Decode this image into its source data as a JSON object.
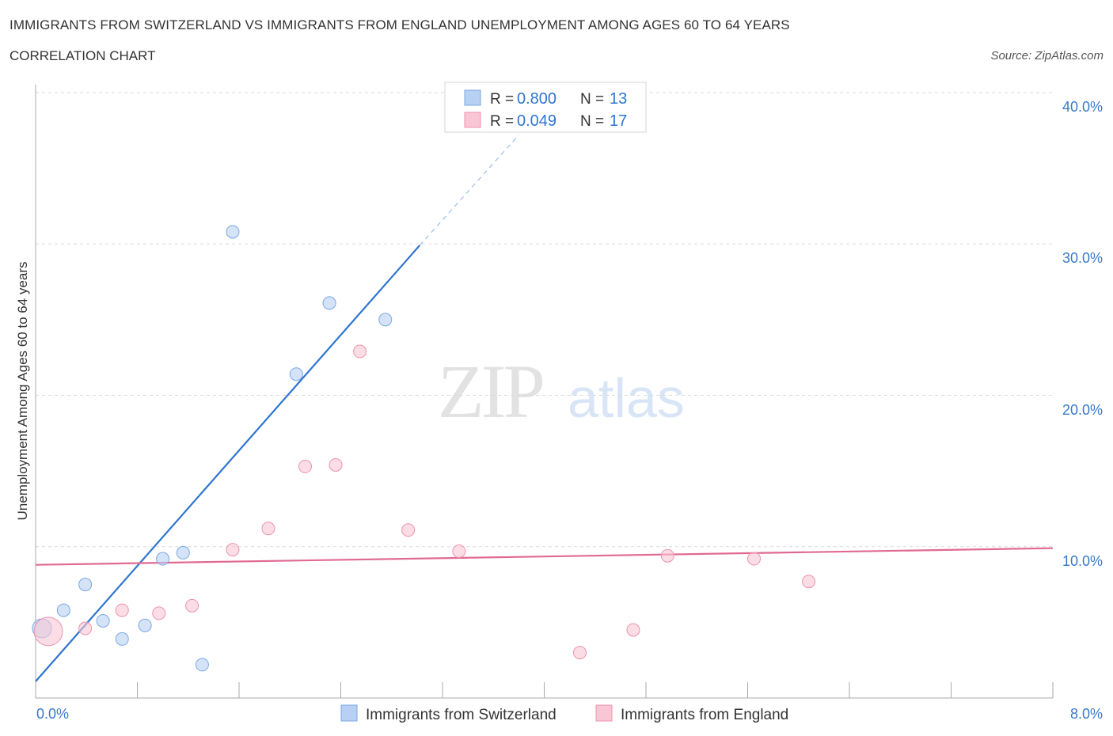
{
  "title": "IMMIGRANTS FROM SWITZERLAND VS IMMIGRANTS FROM ENGLAND UNEMPLOYMENT AMONG AGES 60 TO 64 YEARS",
  "subtitle": "CORRELATION CHART",
  "source": "Source: ZipAtlas.com",
  "watermark": {
    "zip": "ZIP",
    "atlas": "atlas"
  },
  "colors": {
    "blue_fill": "#b9d0f5",
    "blue_stroke": "#7aa7e0",
    "blue_line": "#2f75d0",
    "pink_fill": "#f8c6d4",
    "pink_stroke": "#ec93ae",
    "pink_line": "#e06a92",
    "axis_label": "#3a78c9",
    "grid": "#d9d9d9"
  },
  "stats_legend": [
    {
      "r_label": "R = ",
      "r_value": "0.800",
      "n_label": "N = ",
      "n_value": "13"
    },
    {
      "r_label": "R = ",
      "r_value": "0.049",
      "n_label": "N = ",
      "n_value": "17"
    }
  ],
  "chart_data": {
    "type": "scatter",
    "title": "IMMIGRANTS FROM SWITZERLAND VS IMMIGRANTS FROM ENGLAND UNEMPLOYMENT AMONG AGES 60 TO 64 YEARS",
    "subtitle": "CORRELATION CHART",
    "xlabel": "",
    "ylabel": "Unemployment Among Ages 60 to 64 years",
    "xlim": [
      0,
      8
    ],
    "ylim": [
      0,
      40
    ],
    "x_tick_labels": [
      "0.0%",
      "8.0%"
    ],
    "y_tick_labels": [
      "10.0%",
      "20.0%",
      "30.0%",
      "40.0%"
    ],
    "y_ticks": [
      10,
      20,
      30,
      40
    ],
    "x_minor_ticks": [
      0.8,
      1.6,
      2.4,
      3.2,
      4.0,
      4.8,
      5.6,
      6.4,
      7.2,
      8.0
    ],
    "grid": true,
    "series": [
      {
        "name": "Immigrants from Switzerland",
        "color": "blue",
        "R": 0.8,
        "N": 13,
        "points": [
          {
            "x": 0.05,
            "y": 4.6,
            "size": "large"
          },
          {
            "x": 0.22,
            "y": 5.8
          },
          {
            "x": 0.39,
            "y": 7.5
          },
          {
            "x": 0.53,
            "y": 5.1
          },
          {
            "x": 0.68,
            "y": 3.9
          },
          {
            "x": 0.86,
            "y": 4.8
          },
          {
            "x": 1.0,
            "y": 9.2
          },
          {
            "x": 1.16,
            "y": 9.6
          },
          {
            "x": 1.31,
            "y": 2.2
          },
          {
            "x": 1.55,
            "y": 30.8
          },
          {
            "x": 2.05,
            "y": 21.4
          },
          {
            "x": 2.31,
            "y": 26.1
          },
          {
            "x": 2.75,
            "y": 25.0
          }
        ],
        "trendline": {
          "x_start": 0.0,
          "y_start": 1.1,
          "x_solid_end": 3.02,
          "y_solid_end": 29.9,
          "x_dash_end": 3.8,
          "y_dash_end": 37.2
        }
      },
      {
        "name": "Immigrants from England",
        "color": "pink",
        "R": 0.049,
        "N": 17,
        "points": [
          {
            "x": 0.1,
            "y": 4.4,
            "size": "xlarge"
          },
          {
            "x": 0.39,
            "y": 4.6
          },
          {
            "x": 0.68,
            "y": 5.8
          },
          {
            "x": 0.97,
            "y": 5.6
          },
          {
            "x": 1.23,
            "y": 6.1
          },
          {
            "x": 1.55,
            "y": 9.8
          },
          {
            "x": 1.83,
            "y": 11.2
          },
          {
            "x": 2.12,
            "y": 15.3
          },
          {
            "x": 2.36,
            "y": 15.4
          },
          {
            "x": 2.55,
            "y": 22.9
          },
          {
            "x": 2.93,
            "y": 11.1
          },
          {
            "x": 3.33,
            "y": 9.7
          },
          {
            "x": 4.28,
            "y": 3.0
          },
          {
            "x": 4.7,
            "y": 4.5
          },
          {
            "x": 4.97,
            "y": 9.4
          },
          {
            "x": 5.65,
            "y": 9.2
          },
          {
            "x": 6.08,
            "y": 7.7
          }
        ],
        "trendline": {
          "x_start": 0.0,
          "y_start": 8.8,
          "x_end": 8.0,
          "y_end": 9.9
        }
      }
    ]
  }
}
